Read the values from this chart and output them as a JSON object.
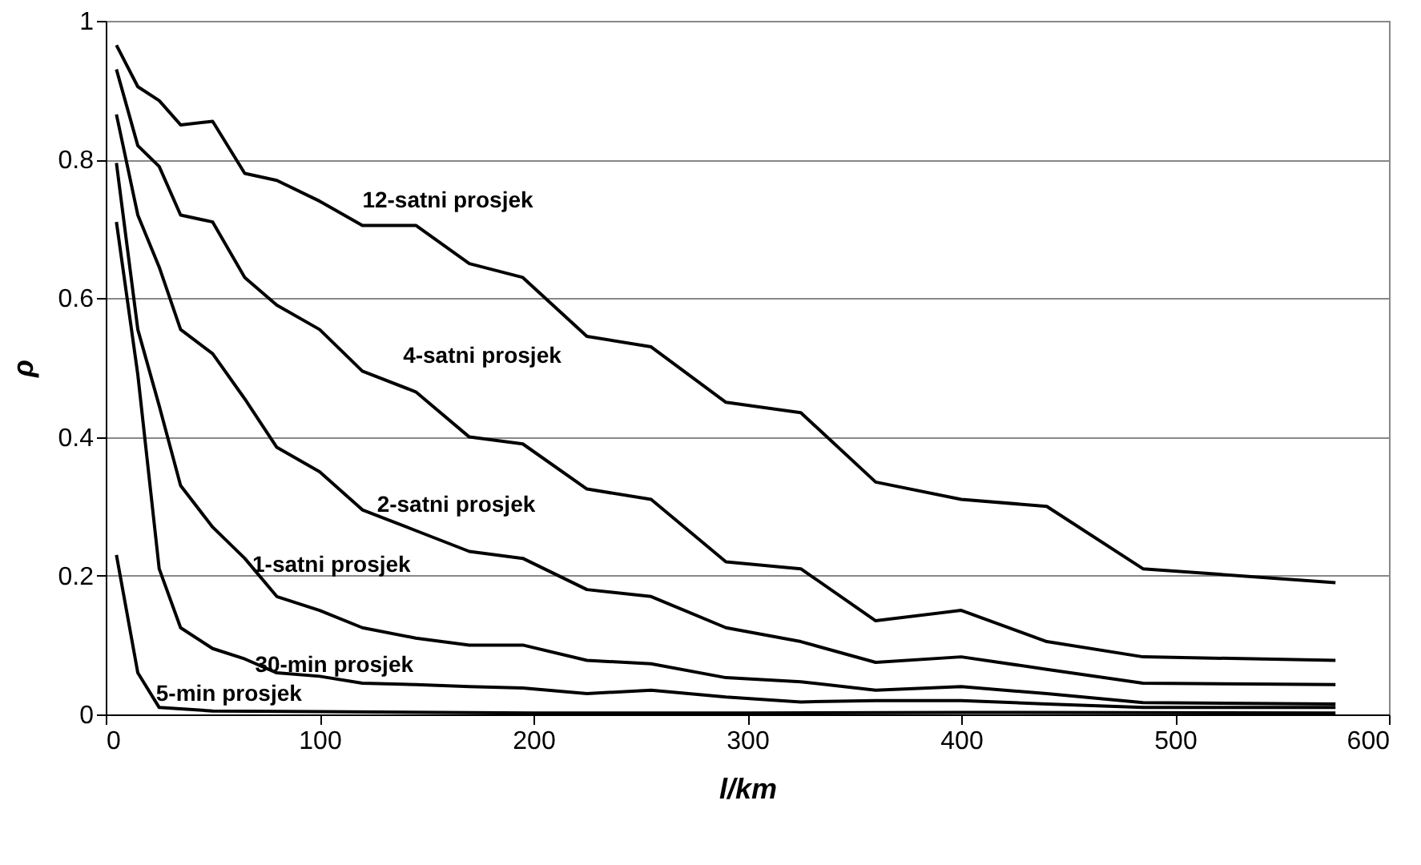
{
  "chart_data": {
    "type": "line",
    "xlabel": "l/km",
    "ylabel": "ρ",
    "xlim": [
      0,
      600
    ],
    "ylim": [
      0,
      1
    ],
    "xticks": [
      0,
      100,
      200,
      300,
      400,
      500,
      600
    ],
    "yticks": [
      {
        "value": 0,
        "label": "0"
      },
      0.2,
      0.4,
      0.6,
      0.8,
      {
        "value": 1,
        "label": "1"
      }
    ],
    "grid": "y",
    "legend": false,
    "marker": "none",
    "line_style": "solid",
    "series": [
      {
        "color": "#000000",
        "x": [
          5,
          15,
          25,
          35,
          50,
          65,
          80,
          100,
          120,
          145,
          170,
          195,
          225,
          255,
          290,
          325,
          360,
          400,
          440,
          485,
          575
        ],
        "values": [
          0.965,
          0.905,
          0.885,
          0.85,
          0.855,
          0.78,
          0.77,
          0.74,
          0.705,
          0.705,
          0.65,
          0.63,
          0.545,
          0.53,
          0.45,
          0.435,
          0.335,
          0.31,
          0.3,
          0.21,
          0.19
        ]
      },
      {
        "color": "#000000",
        "x": [
          5,
          15,
          25,
          35,
          50,
          65,
          80,
          100,
          120,
          145,
          170,
          195,
          225,
          255,
          290,
          325,
          360,
          400,
          440,
          485,
          575
        ],
        "values": [
          0.93,
          0.82,
          0.79,
          0.72,
          0.71,
          0.63,
          0.59,
          0.555,
          0.495,
          0.465,
          0.4,
          0.39,
          0.325,
          0.31,
          0.22,
          0.21,
          0.135,
          0.15,
          0.105,
          0.083,
          0.078
        ]
      },
      {
        "color": "#000000",
        "x": [
          5,
          15,
          25,
          35,
          50,
          65,
          80,
          100,
          120,
          145,
          170,
          195,
          225,
          255,
          290,
          325,
          360,
          400,
          440,
          485,
          575
        ],
        "values": [
          0.865,
          0.72,
          0.645,
          0.555,
          0.52,
          0.455,
          0.385,
          0.35,
          0.295,
          0.265,
          0.235,
          0.225,
          0.18,
          0.17,
          0.125,
          0.105,
          0.075,
          0.083,
          0.065,
          0.045,
          0.043
        ]
      },
      {
        "color": "#000000",
        "x": [
          5,
          15,
          25,
          35,
          50,
          65,
          80,
          100,
          120,
          145,
          170,
          195,
          225,
          255,
          290,
          325,
          360,
          400,
          440,
          485,
          575
        ],
        "values": [
          0.795,
          0.555,
          0.445,
          0.33,
          0.27,
          0.225,
          0.17,
          0.15,
          0.125,
          0.11,
          0.1,
          0.1,
          0.078,
          0.073,
          0.053,
          0.047,
          0.035,
          0.04,
          0.03,
          0.017,
          0.015
        ]
      },
      {
        "color": "#000000",
        "x": [
          5,
          15,
          25,
          35,
          50,
          65,
          80,
          100,
          120,
          145,
          170,
          195,
          225,
          255,
          290,
          325,
          360,
          400,
          440,
          485,
          575
        ],
        "values": [
          0.71,
          0.49,
          0.21,
          0.125,
          0.095,
          0.08,
          0.06,
          0.055,
          0.045,
          0.043,
          0.04,
          0.038,
          0.03,
          0.035,
          0.025,
          0.018,
          0.02,
          0.02,
          0.015,
          0.01,
          0.01
        ]
      },
      {
        "color": "#000000",
        "x": [
          5,
          15,
          25,
          35,
          50,
          100,
          200,
          300,
          400,
          575
        ],
        "values": [
          0.23,
          0.06,
          0.01,
          0.008,
          0.005,
          0.004,
          0.002,
          0.002,
          0.003,
          0.002
        ]
      }
    ],
    "annotations": [
      "12-satni prosjek",
      "4-satni prosjek",
      "2-satni prosjek",
      "1-satni prosjek",
      "30-min prosjek",
      "5-min prosjek"
    ]
  }
}
